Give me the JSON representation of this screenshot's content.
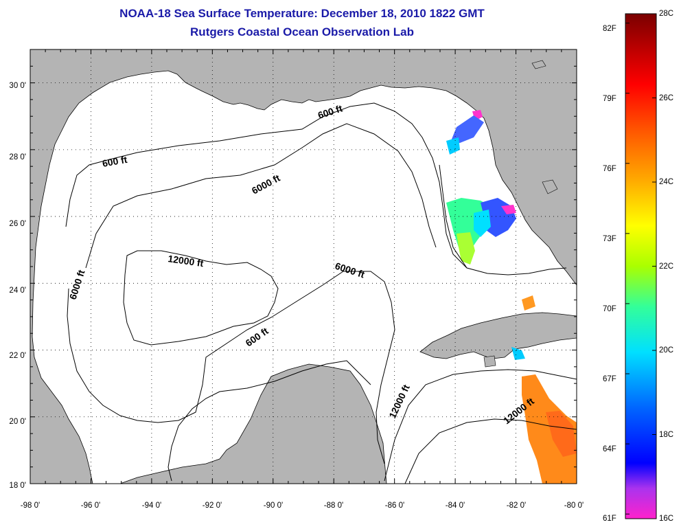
{
  "title": "NOAA-18 Sea Surface Temperature:  December 18, 2010 1822 GMT",
  "subtitle": "Rutgers Coastal Ocean Observation Lab",
  "map": {
    "lon_range": [
      -98,
      -80
    ],
    "lat_range": [
      18,
      31
    ],
    "lon_tick_labels": [
      "-98 0'",
      "-96 0'",
      "-94 0'",
      "-92 0'",
      "-90 0'",
      "-88 0'",
      "-86 0'",
      "-84 0'",
      "-82 0'",
      "-80 0'"
    ],
    "lat_tick_labels": [
      "18 0'",
      "20 0'",
      "22 0'",
      "24 0'",
      "26 0'",
      "28 0'",
      "30 0'"
    ],
    "grid": "dotted",
    "land_color": "#b4b4b4",
    "water_color": "#ffffff"
  },
  "contour_labels": {
    "c600_1": "600 ft",
    "c600_2": "600 ft",
    "c600_3": "600 ft",
    "c6000_1": "6000 ft",
    "c6000_2": "6000 ft",
    "c6000_3": "6000 ft",
    "c12000_1": "12000 ft",
    "c12000_2": "12000 ft",
    "c12000_3": "12000 ft"
  },
  "colorbar": {
    "fahrenheit_labels": [
      "82F",
      "79F",
      "76F",
      "73F",
      "70F",
      "67F",
      "64F",
      "61F"
    ],
    "celsius_labels": [
      "28C",
      "26C",
      "24C",
      "22C",
      "20C",
      "18C",
      "16C"
    ],
    "range_c": [
      16,
      28
    ],
    "colors": [
      "#ff22cc",
      "#8833ff",
      "#0000ff",
      "#0088ff",
      "#00e8ff",
      "#33ff99",
      "#aaff00",
      "#ffff00",
      "#ffaa00",
      "#ff5500",
      "#ff0000",
      "#aa0000",
      "#7a0000"
    ]
  }
}
